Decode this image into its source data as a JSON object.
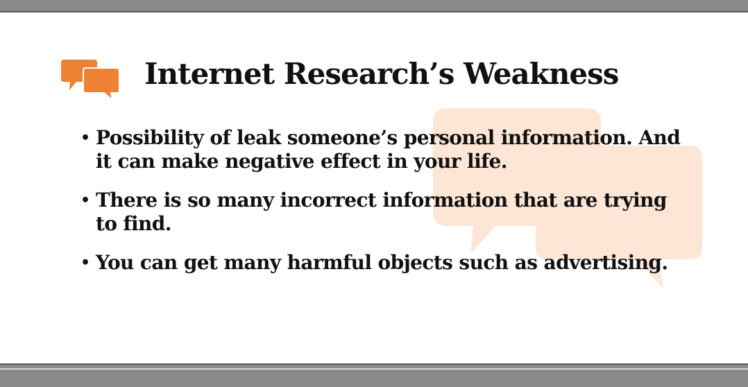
{
  "slide": {
    "title": "Internet Research’s Weakness",
    "icon": "speech-bubbles-icon",
    "accent_color": "#ee8133",
    "watermark_color": "#fde6d6",
    "bullet_symbol": "•",
    "bullets": [
      {
        "text": "Possibility of leak someone’s personal information. And it can make negative effect in your life."
      },
      {
        "text": "There is so many incorrect information that are trying to find."
      },
      {
        "text": "You can get many harmful objects such as advertising."
      }
    ]
  }
}
